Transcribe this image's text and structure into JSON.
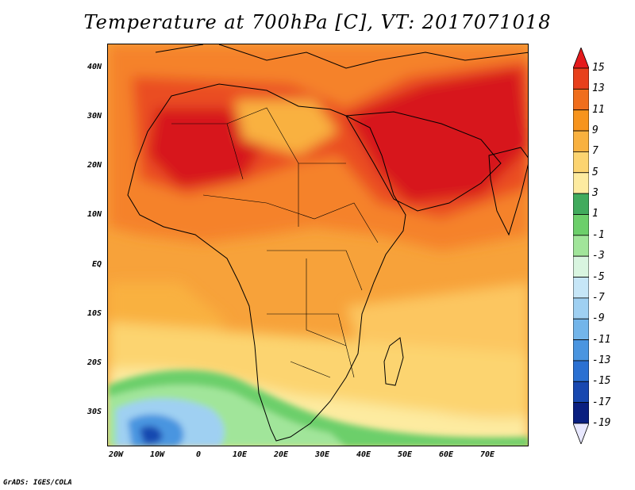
{
  "title": "Temperature at 700hPa [C], VT: 2017071018",
  "credit": "GrADS: IGES/COLA",
  "lat_labels": [
    "40N",
    "30N",
    "20N",
    "10N",
    "EQ",
    "10S",
    "20S",
    "30S"
  ],
  "lon_labels": [
    "20W",
    "10W",
    "0",
    "10E",
    "20E",
    "30E",
    "40E",
    "50E",
    "60E",
    "70E"
  ],
  "colorbar": {
    "labels": [
      "15",
      "13",
      "11",
      "9",
      "7",
      "5",
      "3",
      "1",
      "-1",
      "-3",
      "-5",
      "-7",
      "-9",
      "-11",
      "-13",
      "-15",
      "-17",
      "-19"
    ],
    "colors": [
      "#e41a1c",
      "#e8401c",
      "#f06e1c",
      "#f7941d",
      "#f9b13f",
      "#fcd470",
      "#fdeba0",
      "#41ab5d",
      "#6ccf6a",
      "#a1e59a",
      "#d9f5e0",
      "#c6e6f7",
      "#9fd0f2",
      "#73b5ea",
      "#4a95e0",
      "#2a70d2",
      "#1848b0",
      "#0a1f80",
      "#e8e8ff"
    ]
  },
  "map_colors": {
    "ocean_base": "#f7a23a",
    "warm_core": "#d7191c",
    "hot": "#ea4e21",
    "warm": "#f5822a",
    "mild": "#fcc660",
    "cool_green": "#5cc85c",
    "cold_blue": "#5aa0e6",
    "coast": "#000000"
  }
}
